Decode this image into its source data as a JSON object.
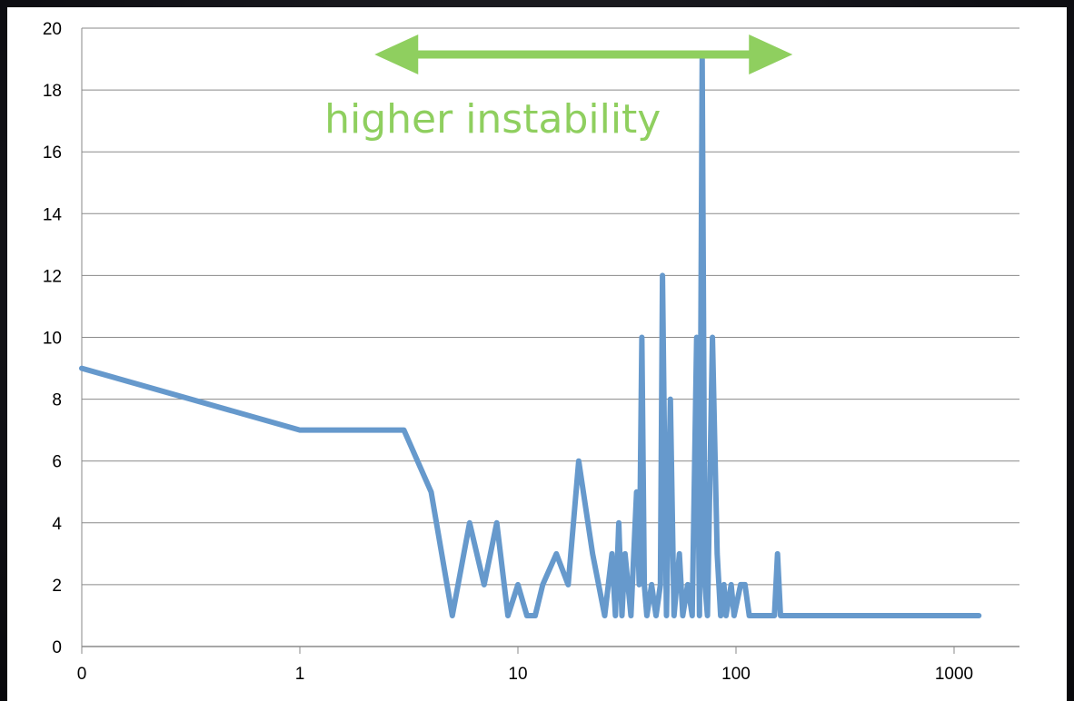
{
  "chart_data": {
    "type": "line",
    "title": "",
    "xlabel": "",
    "ylabel": "",
    "x_scale": "log (first tick labelled 0)",
    "x_tick_labels": [
      "0",
      "1",
      "10",
      "100",
      "1000"
    ],
    "y_tick_labels": [
      "0",
      "2",
      "4",
      "6",
      "8",
      "10",
      "12",
      "14",
      "16",
      "18",
      "20"
    ],
    "ylim": [
      0,
      20
    ],
    "grid": "horizontal",
    "legend": "none",
    "annotation": {
      "text": "higher instability",
      "arrow": "double-headed",
      "arrow_range_x": [
        2,
        200
      ],
      "color": "#8fcf5f"
    },
    "series": [
      {
        "color": "#6699cc",
        "points": [
          [
            0.1,
            9
          ],
          [
            1,
            7
          ],
          [
            2,
            7
          ],
          [
            3,
            7
          ],
          [
            4,
            5
          ],
          [
            5,
            1
          ],
          [
            6,
            4
          ],
          [
            7,
            2
          ],
          [
            8,
            4
          ],
          [
            9,
            1
          ],
          [
            10,
            2
          ],
          [
            11,
            1
          ],
          [
            12,
            1
          ],
          [
            13,
            2
          ],
          [
            15,
            3
          ],
          [
            17,
            2
          ],
          [
            19,
            6
          ],
          [
            22,
            3
          ],
          [
            25,
            1
          ],
          [
            27,
            3
          ],
          [
            28,
            1
          ],
          [
            29,
            4
          ],
          [
            30,
            1
          ],
          [
            31,
            3
          ],
          [
            33,
            1
          ],
          [
            35,
            5
          ],
          [
            36,
            2
          ],
          [
            37,
            10
          ],
          [
            38,
            2
          ],
          [
            39,
            1
          ],
          [
            41,
            2
          ],
          [
            43,
            1
          ],
          [
            45,
            2
          ],
          [
            46,
            12
          ],
          [
            48,
            1
          ],
          [
            50,
            8
          ],
          [
            52,
            1
          ],
          [
            55,
            3
          ],
          [
            57,
            1
          ],
          [
            60,
            2
          ],
          [
            63,
            1
          ],
          [
            66,
            10
          ],
          [
            68,
            1
          ],
          [
            70,
            19
          ],
          [
            72,
            2
          ],
          [
            74,
            1
          ],
          [
            78,
            10
          ],
          [
            82,
            3
          ],
          [
            85,
            1
          ],
          [
            88,
            2
          ],
          [
            90,
            1
          ],
          [
            95,
            2
          ],
          [
            98,
            1
          ],
          [
            105,
            2
          ],
          [
            110,
            2
          ],
          [
            115,
            1
          ],
          [
            130,
            1
          ],
          [
            150,
            1
          ],
          [
            155,
            3
          ],
          [
            160,
            1
          ],
          [
            200,
            1
          ],
          [
            300,
            1
          ],
          [
            500,
            1
          ],
          [
            800,
            1
          ],
          [
            1300,
            1
          ]
        ]
      }
    ]
  }
}
